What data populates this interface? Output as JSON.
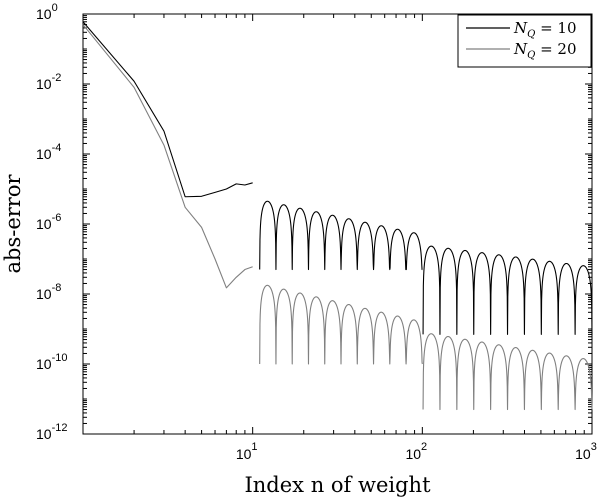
{
  "chart_data": {
    "type": "line",
    "title": "",
    "xlabel": "Index n of weight",
    "ylabel": "abs-error",
    "x_scale": "log",
    "y_scale": "log",
    "xlim": [
      1,
      1000
    ],
    "ylim": [
      1e-12,
      1
    ],
    "x_ticks": [
      {
        "value": 10,
        "base": "10",
        "exp": "1"
      },
      {
        "value": 100,
        "base": "10",
        "exp": "2"
      },
      {
        "value": 1000,
        "base": "10",
        "exp": "3"
      }
    ],
    "y_ticks": [
      {
        "value": 1,
        "base": "10",
        "exp": "0"
      },
      {
        "value": 0.01,
        "base": "10",
        "exp": "-2"
      },
      {
        "value": 0.0001,
        "base": "10",
        "exp": "-4"
      },
      {
        "value": 1e-06,
        "base": "10",
        "exp": "-6"
      },
      {
        "value": 1e-08,
        "base": "10",
        "exp": "-8"
      },
      {
        "value": 1e-10,
        "base": "10",
        "exp": "-10"
      },
      {
        "value": 1e-12,
        "base": "10",
        "exp": "-12"
      }
    ],
    "grid": false,
    "legend_position": "top-right",
    "series": [
      {
        "name": "N_Q = 10",
        "legend_symbol": "N",
        "legend_sub": "Q",
        "legend_rest": " = 10",
        "color": "#000000",
        "segments": [
          {
            "x": [
              1,
              2,
              3,
              4,
              5,
              6,
              7,
              8,
              9,
              10
            ],
            "y": [
              0.6,
              0.012,
              0.00045,
              6e-06,
              6.2e-06,
              8e-06,
              1e-05,
              1.4e-05,
              1.3e-05,
              1.5e-05
            ]
          },
          {
            "x": [
              11,
              100
            ],
            "y": [
              5e-06,
              5e-07
            ],
            "oscillating": true,
            "min_y": 5e-08
          },
          {
            "x": [
              101,
              1000
            ],
            "y": [
              2.5e-07,
              6e-08
            ],
            "oscillating": true,
            "min_y": 7e-10
          }
        ]
      },
      {
        "name": "N_Q = 20",
        "legend_symbol": "N",
        "legend_sub": "Q",
        "legend_rest": " = 20",
        "color": "#808080",
        "segments": [
          {
            "x": [
              1,
              2,
              3,
              4,
              5,
              6,
              7,
              8,
              9,
              10
            ],
            "y": [
              0.5,
              0.008,
              0.00018,
              3e-06,
              8e-07,
              1e-07,
              1.5e-08,
              3e-08,
              5e-08,
              6e-08
            ]
          },
          {
            "x": [
              11,
              100
            ],
            "y": [
              2e-08,
              1.6e-09
            ],
            "oscillating": true,
            "min_y": 1e-10
          },
          {
            "x": [
              101,
              1000
            ],
            "y": [
              8e-10,
              1.3e-10
            ],
            "oscillating": true,
            "min_y": 5e-12
          }
        ]
      }
    ]
  }
}
